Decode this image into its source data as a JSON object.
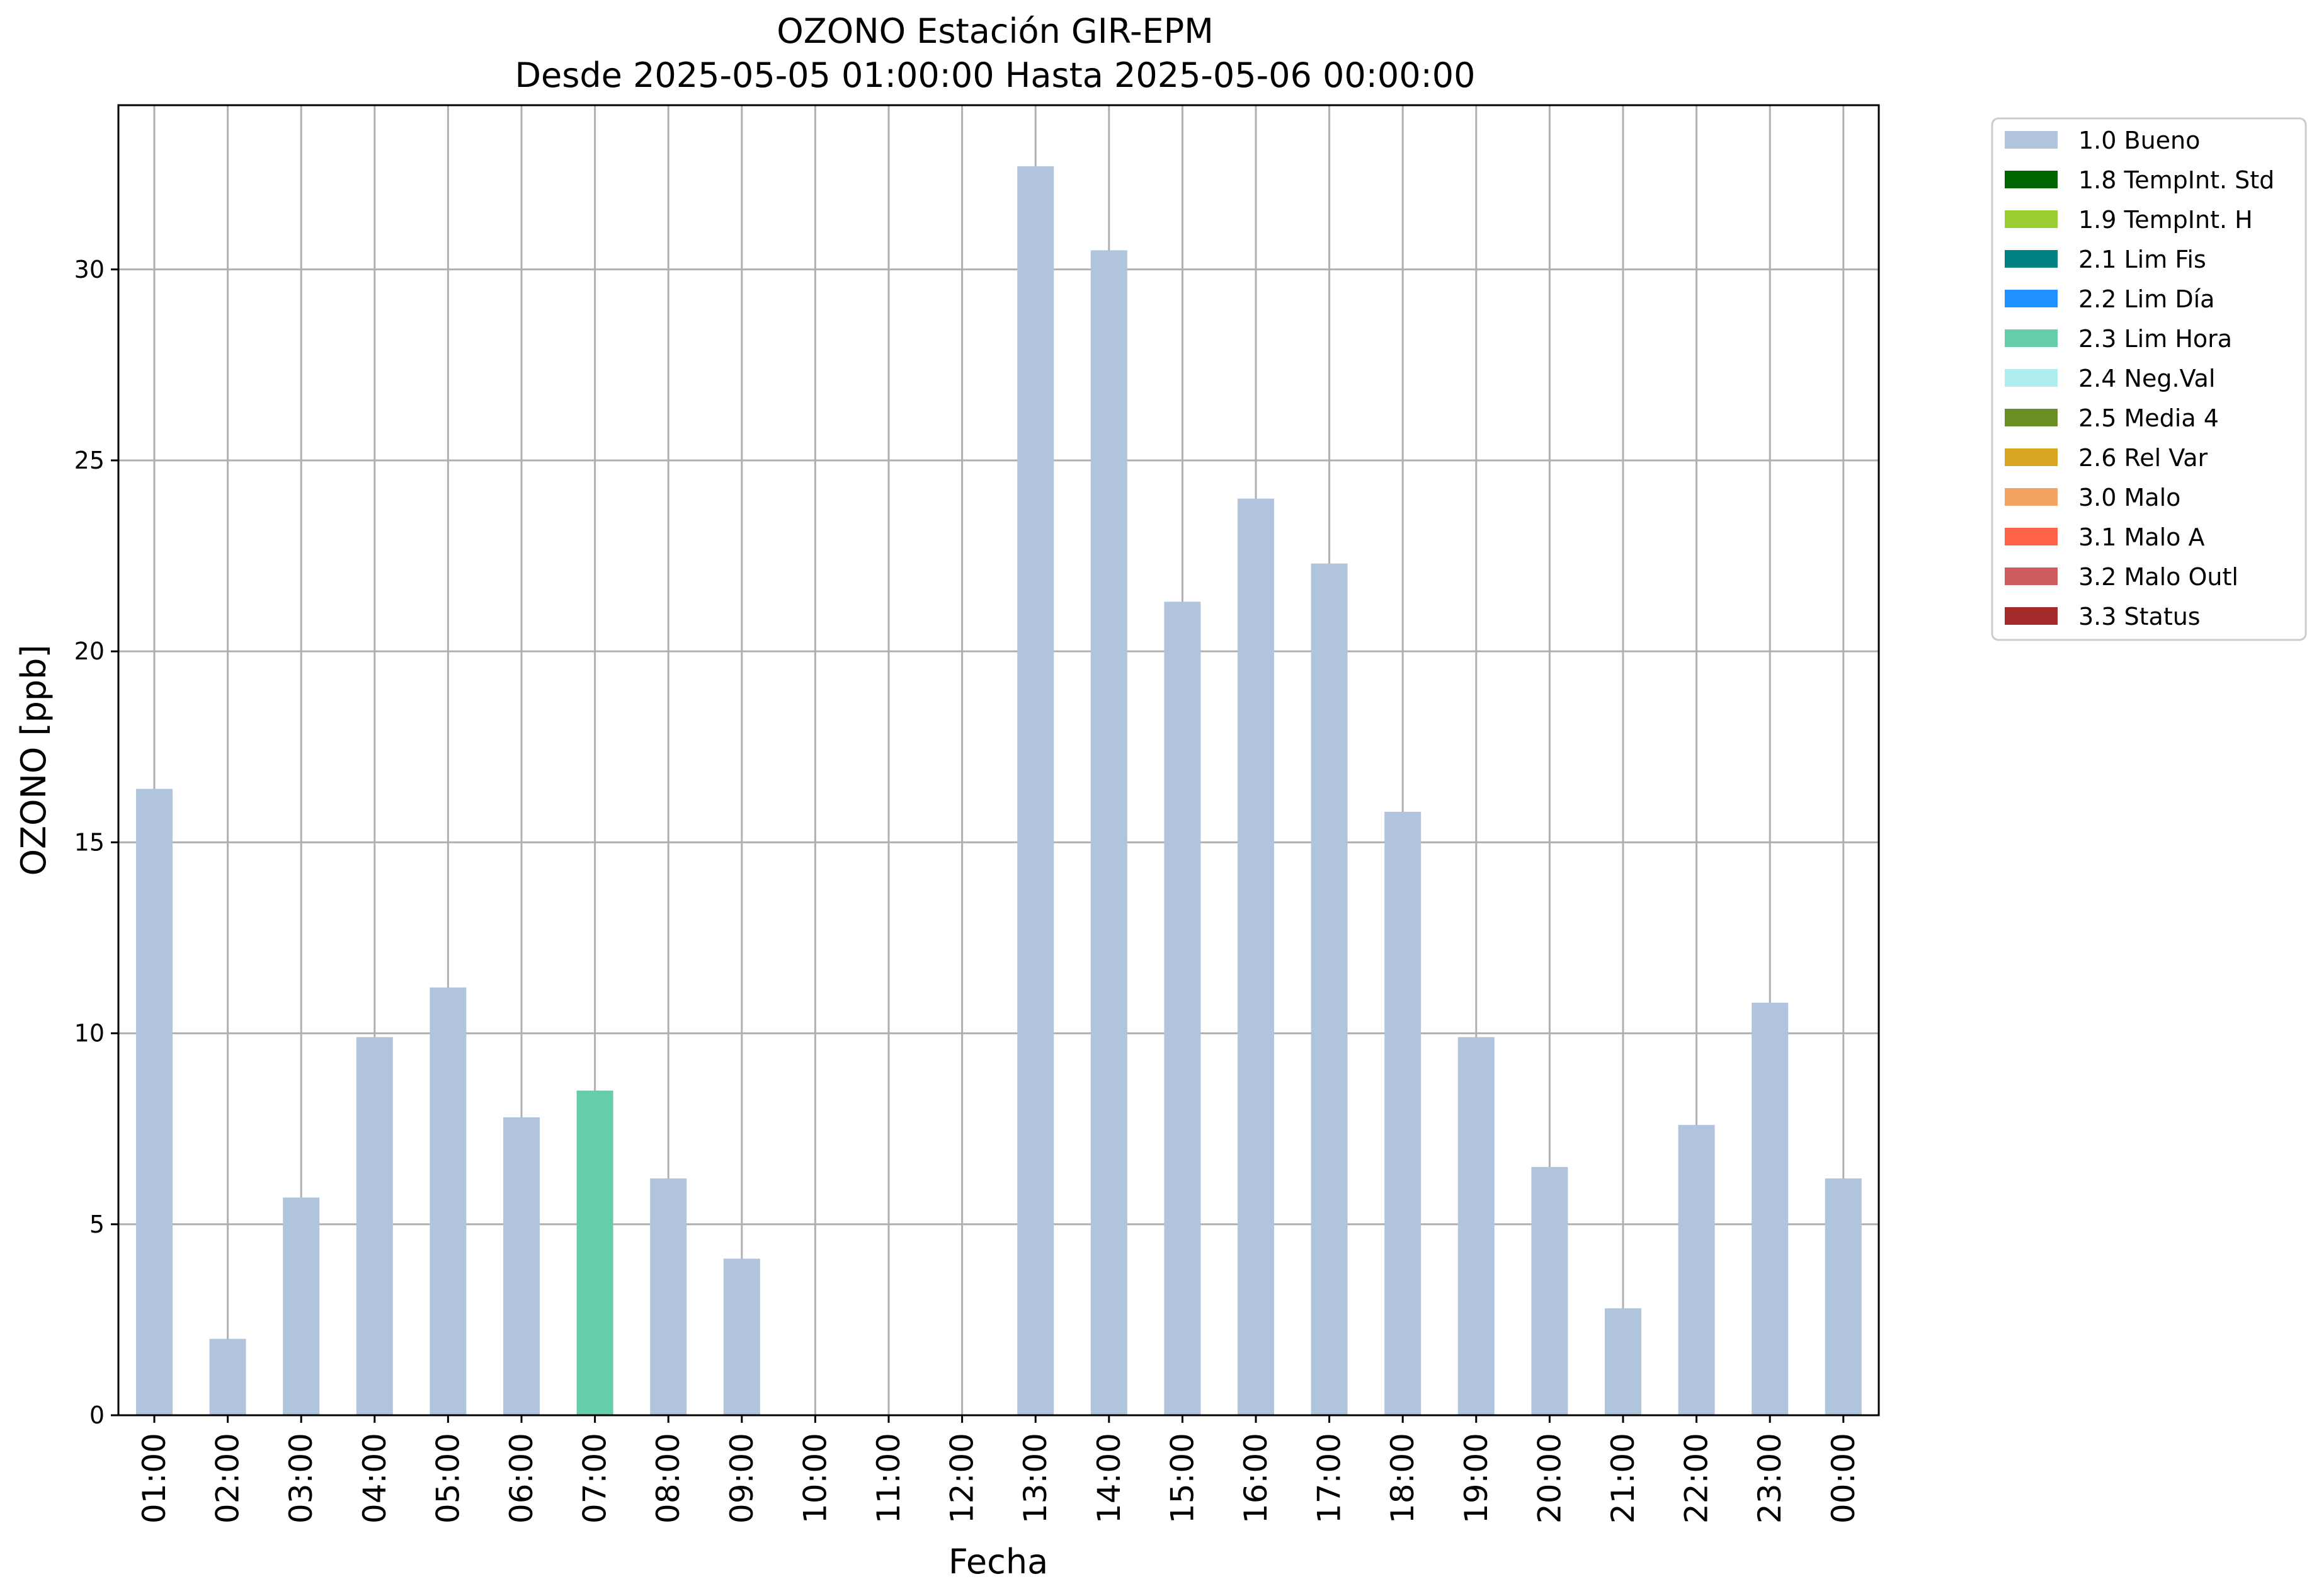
{
  "chart_data": {
    "type": "bar",
    "title": "OZONO Estación GIR-EPM",
    "subtitle": "Desde 2025-05-05 01:00:00 Hasta 2025-05-06 00:00:00",
    "xlabel": "Fecha",
    "ylabel": "OZONO [ppb]",
    "categories": [
      "01:00",
      "02:00",
      "03:00",
      "04:00",
      "05:00",
      "06:00",
      "07:00",
      "08:00",
      "09:00",
      "10:00",
      "11:00",
      "12:00",
      "13:00",
      "14:00",
      "15:00",
      "16:00",
      "17:00",
      "18:00",
      "19:00",
      "20:00",
      "21:00",
      "22:00",
      "23:00",
      "00:00"
    ],
    "values": [
      16.4,
      2.0,
      5.7,
      9.9,
      11.2,
      7.8,
      8.5,
      6.2,
      4.1,
      null,
      null,
      null,
      32.7,
      30.5,
      21.3,
      24.0,
      22.3,
      15.8,
      9.9,
      6.5,
      2.8,
      7.6,
      10.8,
      6.2
    ],
    "flags": [
      "1.0 Bueno",
      "1.0 Bueno",
      "1.0 Bueno",
      "1.0 Bueno",
      "1.0 Bueno",
      "1.0 Bueno",
      "2.3 Lim Hora",
      "1.0 Bueno",
      "1.0 Bueno",
      null,
      null,
      null,
      "1.0 Bueno",
      "1.0 Bueno",
      "1.0 Bueno",
      "1.0 Bueno",
      "1.0 Bueno",
      "1.0 Bueno",
      "1.0 Bueno",
      "1.0 Bueno",
      "1.0 Bueno",
      "1.0 Bueno",
      "1.0 Bueno",
      "1.0 Bueno"
    ],
    "ylim": [
      0,
      34.3
    ],
    "yticks": [
      0,
      5,
      10,
      15,
      20,
      25,
      30
    ],
    "grid": true,
    "legend_position": "outside-top-right",
    "legend": [
      {
        "label": "1.0 Bueno",
        "color": "#b0c4de"
      },
      {
        "label": "1.8 TempInt. Std",
        "color": "#006400"
      },
      {
        "label": "1.9 TempInt. H",
        "color": "#9acd32"
      },
      {
        "label": "2.1 Lim Fis",
        "color": "#008080"
      },
      {
        "label": "2.2 Lim Día",
        "color": "#1e90ff"
      },
      {
        "label": "2.3 Lim Hora",
        "color": "#66cdaa"
      },
      {
        "label": "2.4 Neg.Val",
        "color": "#afeeee"
      },
      {
        "label": "2.5 Media 4",
        "color": "#6b8e23"
      },
      {
        "label": "2.6 Rel Var",
        "color": "#daa520"
      },
      {
        "label": "3.0 Malo",
        "color": "#f4a460"
      },
      {
        "label": "3.1 Malo A",
        "color": "#ff6347"
      },
      {
        "label": "3.2 Malo Outl",
        "color": "#cd5c5c"
      },
      {
        "label": "3.3 Status",
        "color": "#a52a2a"
      }
    ]
  }
}
